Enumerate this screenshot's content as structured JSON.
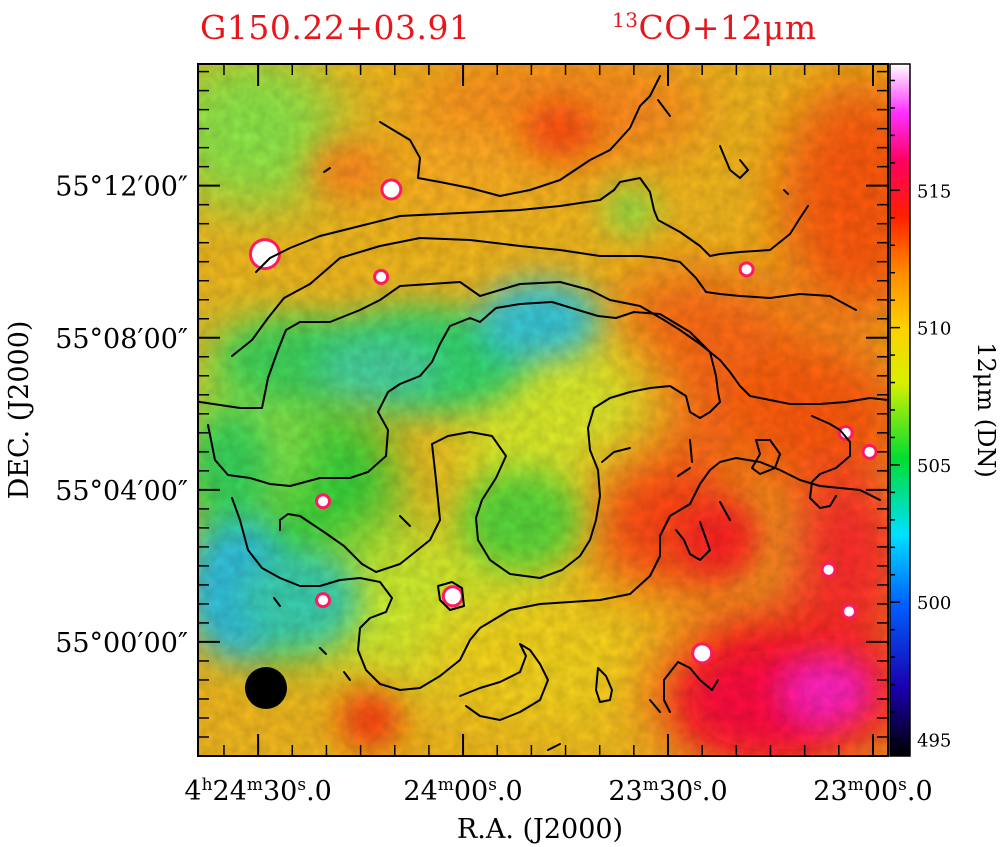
{
  "title_left": "G150.22+03.91",
  "title_right_sup": "13",
  "title_right_main": "CO+12μm",
  "chart_data": {
    "type": "heatmap",
    "title": "G150.22+03.91  13CO+12μm",
    "xlabel": "R.A.  (J2000)",
    "ylabel": "DEC.  (J2000)",
    "colorbar_label": "12μm (DN)",
    "colorbar_range": [
      494.4,
      519.6
    ],
    "colorbar_ticks": [
      495,
      500,
      505,
      510,
      515
    ],
    "x_ticks": [
      {
        "h": "4",
        "m": "24",
        "s": "30",
        "frac": "0",
        "ra_sec": 30
      },
      {
        "h": "",
        "m": "24",
        "s": "00",
        "frac": "0",
        "ra_sec": 0
      },
      {
        "h": "",
        "m": "23",
        "s": "30",
        "frac": "0",
        "ra_sec": -30
      },
      {
        "h": "",
        "m": "23",
        "s": "00",
        "frac": "0",
        "ra_sec": -60
      }
    ],
    "y_ticks": [
      {
        "label": "55°12′00″",
        "dec_min": 12
      },
      {
        "label": "55°08′00″",
        "dec_min": 8
      },
      {
        "label": "55°04′00″",
        "dec_min": 4
      },
      {
        "label": "55°00′00″",
        "dec_min": 0
      }
    ],
    "xlim_ra_sec": [
      38.8,
      -62.2
    ],
    "ylim_dec_min": [
      -3.0,
      15.2
    ],
    "beam": "filled black circle, lower-left",
    "colors": {
      "title": "#e8161b",
      "contour": "#000000",
      "colormap": [
        "#000000",
        "#0000ff",
        "#00e0ff",
        "#00dd30",
        "#ffff00",
        "#ffa500",
        "#ff0000",
        "#ff00ff",
        "#ffffff"
      ]
    },
    "emission_regions": [
      {
        "name": "cold-filament",
        "ra_sec": 4.0,
        "dec_min": 7.3,
        "level": 501.5
      },
      {
        "name": "cold-southwest",
        "ra_sec": 31.0,
        "dec_min": 2.0,
        "level": 500.5
      },
      {
        "name": "warm-southeast",
        "ra_sec": -48.0,
        "dec_min": 0.5,
        "level": 515.0
      }
    ],
    "point_sources": [
      {
        "ra_sec": 29.0,
        "dec_min": 10.2,
        "size": "large"
      },
      {
        "ra_sec": 10.5,
        "dec_min": 11.9,
        "size": "medium"
      },
      {
        "ra_sec": 12.0,
        "dec_min": 9.6,
        "size": "small"
      },
      {
        "ra_sec": 20.5,
        "dec_min": 3.7,
        "size": "small"
      },
      {
        "ra_sec": 20.5,
        "dec_min": 1.1,
        "size": "small"
      },
      {
        "ra_sec": 1.5,
        "dec_min": 1.2,
        "size": "medium"
      },
      {
        "ra_sec": -35.0,
        "dec_min": -0.3,
        "size": "medium"
      },
      {
        "ra_sec": -41.5,
        "dec_min": 9.8,
        "size": "small"
      },
      {
        "ra_sec": -56.0,
        "dec_min": 5.5,
        "size": "small"
      },
      {
        "ra_sec": -59.5,
        "dec_min": 5.0,
        "size": "small"
      },
      {
        "ra_sec": -53.5,
        "dec_min": 1.9,
        "size": "small"
      },
      {
        "ra_sec": -56.5,
        "dec_min": 0.8,
        "size": "small"
      }
    ]
  }
}
